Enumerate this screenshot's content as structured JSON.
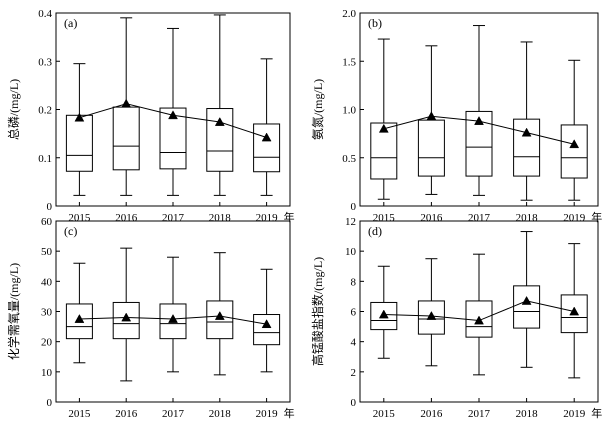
{
  "chart_data": [
    {
      "id": "a",
      "type": "box",
      "panel_label": "(a)",
      "ylabel": "总磷/(mg/L)",
      "ylim": [
        0,
        0.4
      ],
      "yticks": [
        "0",
        "0.1",
        "0.2",
        "0.3",
        "0.4"
      ],
      "yticks_values": [
        0,
        0.1,
        0.2,
        0.3,
        0.4
      ],
      "categories": [
        "2015",
        "2016",
        "2017",
        "2018",
        "2019"
      ],
      "year_unit": "年",
      "boxes": [
        {
          "min": 0.022,
          "q1": 0.072,
          "median": 0.105,
          "q3": 0.188,
          "max": 0.295
        },
        {
          "min": 0.022,
          "q1": 0.075,
          "median": 0.124,
          "q3": 0.205,
          "max": 0.39
        },
        {
          "min": 0.022,
          "q1": 0.077,
          "median": 0.111,
          "q3": 0.203,
          "max": 0.368
        },
        {
          "min": 0.022,
          "q1": 0.072,
          "median": 0.114,
          "q3": 0.202,
          "max": 0.396
        },
        {
          "min": 0.022,
          "q1": 0.071,
          "median": 0.101,
          "q3": 0.17,
          "max": 0.305
        }
      ],
      "means": [
        0.183,
        0.212,
        0.188,
        0.174,
        0.142
      ]
    },
    {
      "id": "b",
      "type": "box",
      "panel_label": "(b)",
      "ylabel": "氨氮/(mg/L)",
      "ylim": [
        0,
        2.0
      ],
      "yticks": [
        "0",
        "0.5",
        "1.0",
        "1.5",
        "2.0"
      ],
      "yticks_values": [
        0,
        0.5,
        1.0,
        1.5,
        2.0
      ],
      "categories": [
        "2015",
        "2016",
        "2017",
        "2018",
        "2019"
      ],
      "year_unit": "年",
      "boxes": [
        {
          "min": 0.07,
          "q1": 0.28,
          "median": 0.5,
          "q3": 0.86,
          "max": 1.73
        },
        {
          "min": 0.12,
          "q1": 0.31,
          "median": 0.5,
          "q3": 0.89,
          "max": 1.66
        },
        {
          "min": 0.11,
          "q1": 0.31,
          "median": 0.61,
          "q3": 0.98,
          "max": 1.87
        },
        {
          "min": 0.06,
          "q1": 0.31,
          "median": 0.51,
          "q3": 0.9,
          "max": 1.7
        },
        {
          "min": 0.06,
          "q1": 0.29,
          "median": 0.5,
          "q3": 0.84,
          "max": 1.51
        }
      ],
      "means": [
        0.8,
        0.93,
        0.88,
        0.76,
        0.64
      ]
    },
    {
      "id": "c",
      "type": "box",
      "panel_label": "(c)",
      "ylabel": "化学需氧量/(mg/L)",
      "ylim": [
        0,
        60
      ],
      "yticks": [
        "0",
        "10",
        "20",
        "30",
        "40",
        "50",
        "60"
      ],
      "yticks_values": [
        0,
        10,
        20,
        30,
        40,
        50,
        60
      ],
      "categories": [
        "2015",
        "2016",
        "2017",
        "2018",
        "2019"
      ],
      "year_unit": "年",
      "boxes": [
        {
          "min": 13.0,
          "q1": 21.0,
          "median": 25.0,
          "q3": 32.5,
          "max": 46.0
        },
        {
          "min": 7.0,
          "q1": 21.0,
          "median": 26.0,
          "q3": 33.0,
          "max": 51.0
        },
        {
          "min": 10.0,
          "q1": 21.0,
          "median": 26.0,
          "q3": 32.5,
          "max": 48.0
        },
        {
          "min": 9.0,
          "q1": 21.0,
          "median": 26.5,
          "q3": 33.5,
          "max": 49.5
        },
        {
          "min": 10.0,
          "q1": 19.0,
          "median": 23.0,
          "q3": 29.0,
          "max": 44.0
        }
      ],
      "means": [
        27.5,
        28.0,
        27.5,
        28.5,
        25.8
      ]
    },
    {
      "id": "d",
      "type": "box",
      "panel_label": "(d)",
      "ylabel": "高锰酸盐指数/(mg/L)",
      "ylim": [
        0,
        12
      ],
      "yticks": [
        "0",
        "2",
        "4",
        "6",
        "8",
        "10",
        "12"
      ],
      "yticks_values": [
        0,
        2,
        4,
        6,
        8,
        10,
        12
      ],
      "categories": [
        "2015",
        "2016",
        "2017",
        "2018",
        "2019"
      ],
      "year_unit": "年",
      "boxes": [
        {
          "min": 2.9,
          "q1": 4.8,
          "median": 5.4,
          "q3": 6.6,
          "max": 9.0
        },
        {
          "min": 2.4,
          "q1": 4.5,
          "median": 5.5,
          "q3": 6.7,
          "max": 9.5
        },
        {
          "min": 1.8,
          "q1": 4.3,
          "median": 5.0,
          "q3": 6.7,
          "max": 9.8
        },
        {
          "min": 2.3,
          "q1": 4.9,
          "median": 6.0,
          "q3": 7.7,
          "max": 11.3
        },
        {
          "min": 1.6,
          "q1": 4.6,
          "median": 5.6,
          "q3": 7.1,
          "max": 10.5
        }
      ],
      "means": [
        5.8,
        5.7,
        5.4,
        6.7,
        6.0
      ]
    }
  ]
}
